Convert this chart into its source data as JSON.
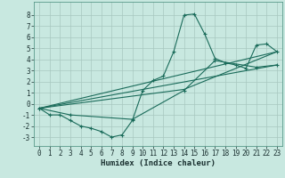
{
  "xlabel": "Humidex (Indice chaleur)",
  "bg_color": "#c8e8e0",
  "grid_color": "#a8c8c0",
  "line_color": "#1a6b5a",
  "xlim": [
    -0.5,
    23.5
  ],
  "ylim": [
    -3.8,
    9.2
  ],
  "yticks": [
    -3,
    -2,
    -1,
    0,
    1,
    2,
    3,
    4,
    5,
    6,
    7,
    8
  ],
  "xticks": [
    0,
    1,
    2,
    3,
    4,
    5,
    6,
    7,
    8,
    9,
    10,
    11,
    12,
    13,
    14,
    15,
    16,
    17,
    18,
    19,
    20,
    21,
    22,
    23
  ],
  "line1_x": [
    0,
    1,
    2,
    3,
    4,
    5,
    6,
    7,
    8,
    9,
    10,
    11,
    12,
    13,
    14,
    15,
    16,
    17,
    18,
    19,
    20,
    21,
    22,
    23
  ],
  "line1_y": [
    -0.4,
    -1.0,
    -1.0,
    -1.5,
    -2.0,
    -2.2,
    -2.5,
    -3.0,
    -2.8,
    -1.5,
    1.2,
    2.1,
    2.5,
    4.7,
    8.0,
    8.1,
    6.3,
    4.1,
    3.7,
    3.5,
    3.2,
    5.3,
    5.4,
    4.7
  ],
  "line2_x": [
    0,
    3,
    9,
    14,
    17,
    21,
    23
  ],
  "line2_y": [
    -0.4,
    -1.0,
    -1.4,
    1.2,
    3.9,
    3.3,
    3.5
  ],
  "line3_x": [
    0,
    23
  ],
  "line3_y": [
    -0.4,
    3.5
  ],
  "line4_x": [
    0,
    14,
    23
  ],
  "line4_y": [
    -0.4,
    1.3,
    4.7
  ],
  "line5_x": [
    0,
    23
  ],
  "line5_y": [
    -0.4,
    4.7
  ],
  "tick_fontsize": 5.5,
  "xlabel_fontsize": 6.5
}
